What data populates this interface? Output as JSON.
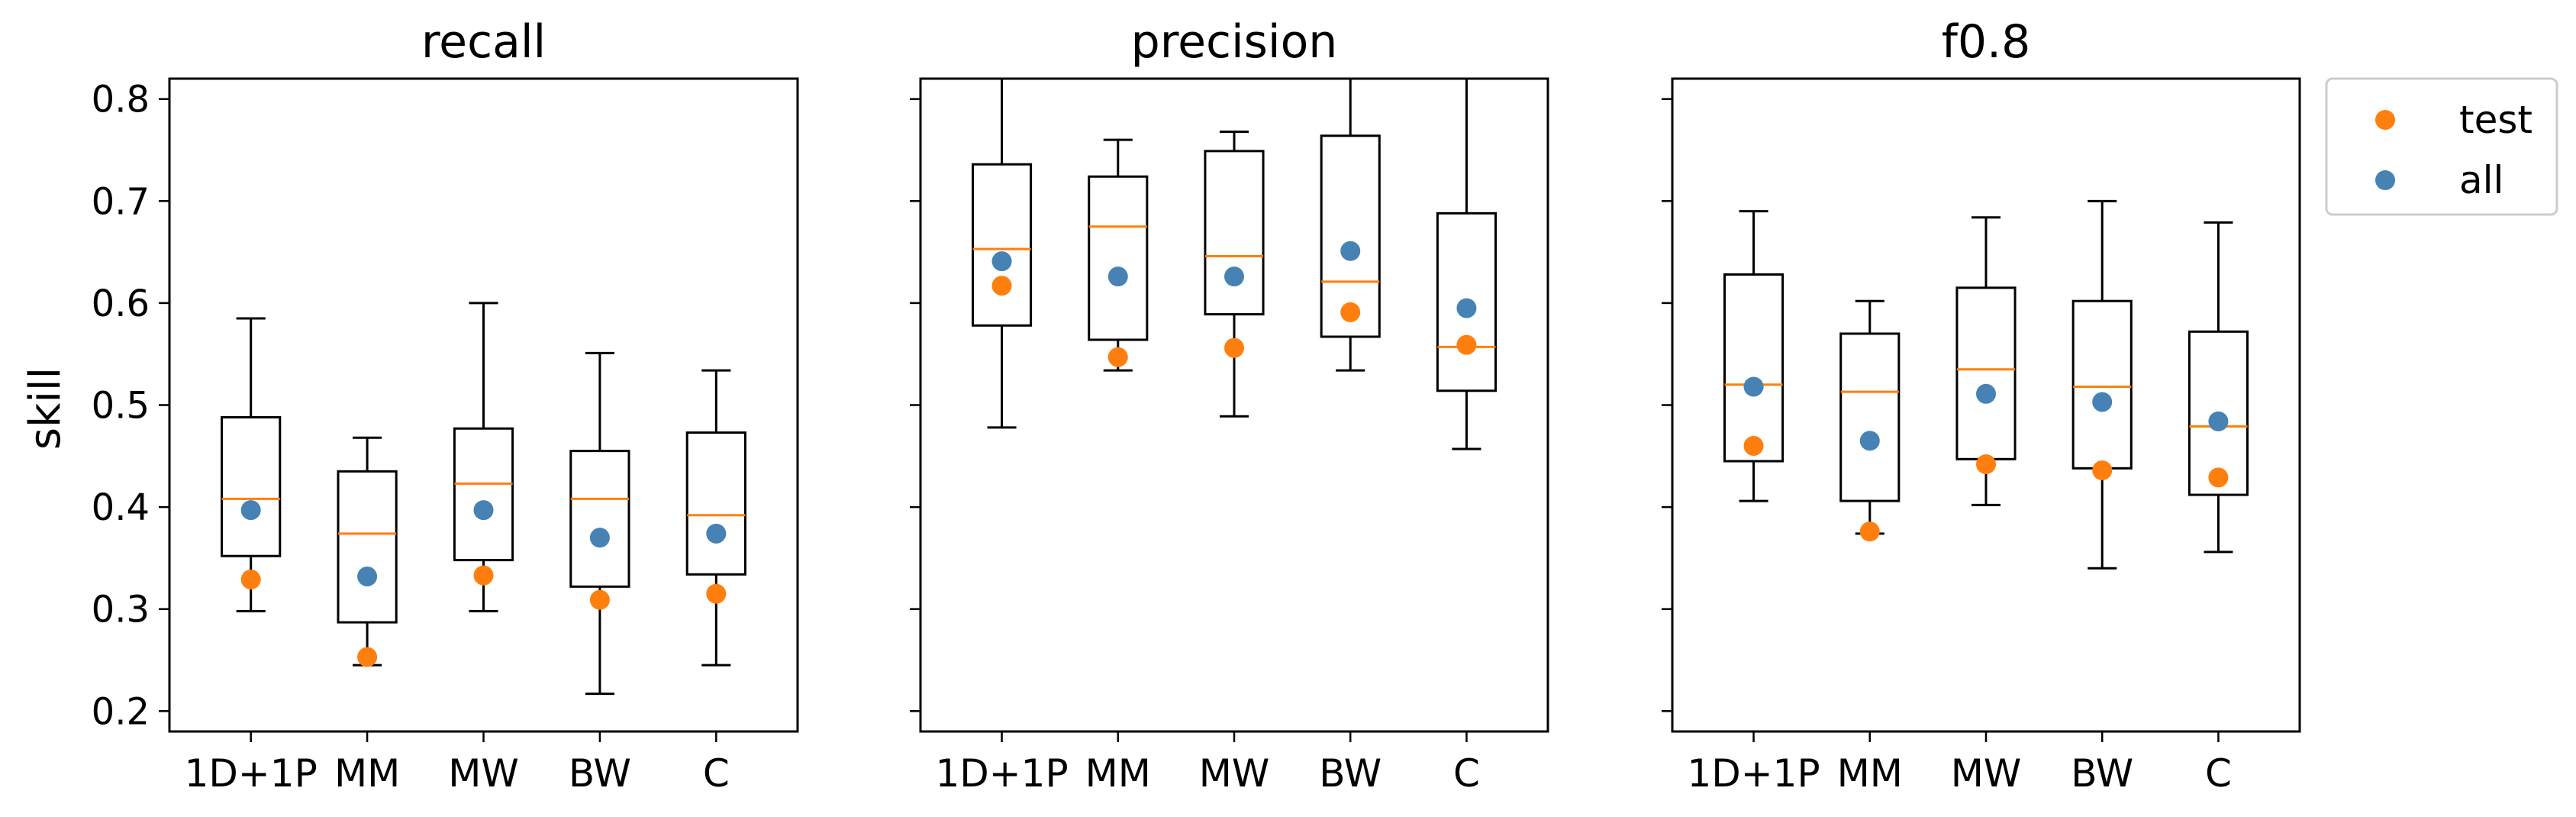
{
  "figure": {
    "ylabel": "skill",
    "legend": {
      "placement": "outside-top-right",
      "entries": [
        {
          "label": "test",
          "color": "#ff7f0e"
        },
        {
          "label": "all",
          "color": "#4682b4"
        }
      ]
    },
    "colors": {
      "median": "#ff7f0e",
      "test_marker": "#ff7f0e",
      "all_marker": "#4682b4",
      "box_edge": "#000000"
    }
  },
  "chart_data": [
    {
      "type": "box",
      "title": "recall",
      "xlabel": "",
      "ylabel": "skill",
      "ylim": [
        0.18,
        0.82
      ],
      "yticks": [
        0.2,
        0.3,
        0.4,
        0.5,
        0.6,
        0.7,
        0.8
      ],
      "ytick_labels": [
        "0.2",
        "0.3",
        "0.4",
        "0.5",
        "0.6",
        "0.7",
        "0.8"
      ],
      "categories": [
        "1D+1P",
        "MM",
        "MW",
        "BW",
        "C"
      ],
      "boxes": [
        {
          "whisker_low": 0.298,
          "q1": 0.352,
          "median": 0.408,
          "q3": 0.488,
          "whisker_high": 0.585
        },
        {
          "whisker_low": 0.245,
          "q1": 0.287,
          "median": 0.374,
          "q3": 0.435,
          "whisker_high": 0.468
        },
        {
          "whisker_low": 0.298,
          "q1": 0.348,
          "median": 0.423,
          "q3": 0.477,
          "whisker_high": 0.6
        },
        {
          "whisker_low": 0.217,
          "q1": 0.322,
          "median": 0.408,
          "q3": 0.455,
          "whisker_high": 0.551
        },
        {
          "whisker_low": 0.245,
          "q1": 0.334,
          "median": 0.392,
          "q3": 0.473,
          "whisker_high": 0.534
        }
      ],
      "series": [
        {
          "name": "test",
          "values": [
            0.329,
            0.253,
            0.333,
            0.309,
            0.315
          ]
        },
        {
          "name": "all",
          "values": [
            0.397,
            0.332,
            0.397,
            0.37,
            0.374
          ]
        }
      ]
    },
    {
      "type": "box",
      "title": "precision",
      "xlabel": "",
      "ylabel": "",
      "ylim": [
        0.18,
        0.82
      ],
      "yticks": [
        0.2,
        0.3,
        0.4,
        0.5,
        0.6,
        0.7,
        0.8
      ],
      "ytick_labels": [],
      "categories": [
        "1D+1P",
        "MM",
        "MW",
        "BW",
        "C"
      ],
      "boxes": [
        {
          "whisker_low": 0.478,
          "q1": 0.578,
          "median": 0.653,
          "q3": 0.736,
          "whisker_high": 0.83
        },
        {
          "whisker_low": 0.534,
          "q1": 0.564,
          "median": 0.675,
          "q3": 0.724,
          "whisker_high": 0.76
        },
        {
          "whisker_low": 0.489,
          "q1": 0.589,
          "median": 0.646,
          "q3": 0.749,
          "whisker_high": 0.768
        },
        {
          "whisker_low": 0.534,
          "q1": 0.567,
          "median": 0.621,
          "q3": 0.764,
          "whisker_high": 0.83
        },
        {
          "whisker_low": 0.457,
          "q1": 0.514,
          "median": 0.557,
          "q3": 0.688,
          "whisker_high": 0.83
        }
      ],
      "series": [
        {
          "name": "test",
          "values": [
            0.617,
            0.547,
            0.556,
            0.591,
            0.559
          ]
        },
        {
          "name": "all",
          "values": [
            0.641,
            0.626,
            0.626,
            0.651,
            0.595
          ]
        }
      ]
    },
    {
      "type": "box",
      "title": "f0.8",
      "xlabel": "",
      "ylabel": "",
      "ylim": [
        0.18,
        0.82
      ],
      "yticks": [
        0.2,
        0.3,
        0.4,
        0.5,
        0.6,
        0.7,
        0.8
      ],
      "ytick_labels": [],
      "categories": [
        "1D+1P",
        "MM",
        "MW",
        "BW",
        "C"
      ],
      "boxes": [
        {
          "whisker_low": 0.406,
          "q1": 0.445,
          "median": 0.52,
          "q3": 0.628,
          "whisker_high": 0.69
        },
        {
          "whisker_low": 0.374,
          "q1": 0.406,
          "median": 0.513,
          "q3": 0.57,
          "whisker_high": 0.602
        },
        {
          "whisker_low": 0.402,
          "q1": 0.447,
          "median": 0.535,
          "q3": 0.615,
          "whisker_high": 0.684
        },
        {
          "whisker_low": 0.34,
          "q1": 0.438,
          "median": 0.518,
          "q3": 0.602,
          "whisker_high": 0.7
        },
        {
          "whisker_low": 0.356,
          "q1": 0.412,
          "median": 0.479,
          "q3": 0.572,
          "whisker_high": 0.679
        }
      ],
      "series": [
        {
          "name": "test",
          "values": [
            0.46,
            0.376,
            0.442,
            0.436,
            0.429
          ]
        },
        {
          "name": "all",
          "values": [
            0.518,
            0.465,
            0.511,
            0.503,
            0.484
          ]
        }
      ]
    }
  ]
}
